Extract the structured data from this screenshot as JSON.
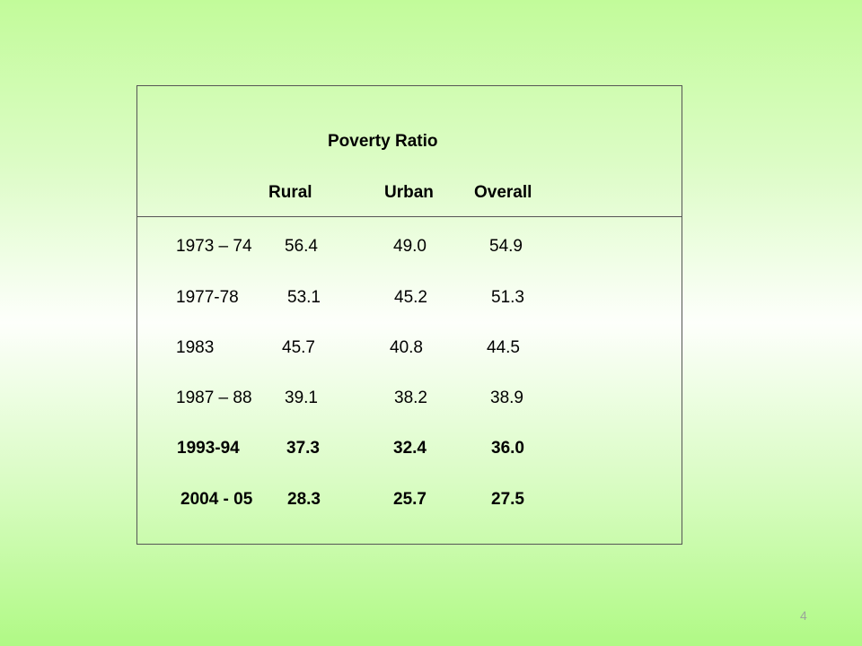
{
  "table": {
    "title": "Poverty Ratio",
    "columns": [
      "Rural",
      "Urban",
      "Overall"
    ],
    "rows": [
      {
        "period": "1973 – 74",
        "rural": "56.4",
        "urban": "49.0",
        "overall": "54.9"
      },
      {
        "period": "1977-78",
        "rural": "53.1",
        "urban": "45.2",
        "overall": "51.3"
      },
      {
        "period": "1983",
        "rural": "45.7",
        "urban": "40.8",
        "overall": "44.5"
      },
      {
        "period": "1987 – 88",
        "rural": "39.1",
        "urban": "38.2",
        "overall": "38.9"
      },
      {
        "period": "1993-94",
        "rural": "37.3",
        "urban": "32.4",
        "overall": "36.0"
      },
      {
        "period": "2004 - 05",
        "rural": "28.3",
        "urban": "25.7",
        "overall": "27.5"
      }
    ]
  },
  "footer": {
    "page_number": "4"
  }
}
